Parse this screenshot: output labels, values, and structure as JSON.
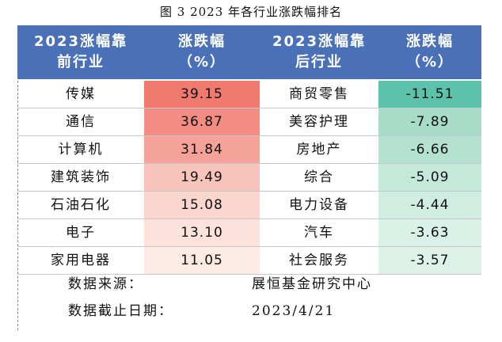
{
  "caption": "图 3   2023 年各行业涨跌幅排名",
  "header": {
    "col1": [
      "2023涨幅靠",
      "前行业"
    ],
    "col2": [
      "涨跌幅",
      "（%）"
    ],
    "col3": [
      "2023涨幅靠",
      "后行业"
    ],
    "col4": [
      "涨跌幅",
      "（%）"
    ]
  },
  "rows": [
    {
      "top": "传媒",
      "top_pct": "39.15",
      "bottom": "商贸零售",
      "bottom_pct": "-11.51"
    },
    {
      "top": "通信",
      "top_pct": "36.87",
      "bottom": "美容护理",
      "bottom_pct": "-7.89"
    },
    {
      "top": "计算机",
      "top_pct": "31.84",
      "bottom": "房地产",
      "bottom_pct": "-6.66"
    },
    {
      "top": "建筑装饰",
      "top_pct": "19.49",
      "bottom": "综合",
      "bottom_pct": "-5.09"
    },
    {
      "top": "石油石化",
      "top_pct": "15.08",
      "bottom": "电力设备",
      "bottom_pct": "-4.44"
    },
    {
      "top": "电子",
      "top_pct": "13.10",
      "bottom": "汽车",
      "bottom_pct": "-3.63"
    },
    {
      "top": "家用电器",
      "top_pct": "11.05",
      "bottom": "社会服务",
      "bottom_pct": "-3.57"
    }
  ],
  "footer": {
    "source_label": "数据来源：",
    "source_value": "展恒基金研究中心",
    "date_label": "数据截止日期：",
    "date_value": "2023/4/21"
  },
  "colors": {
    "header_bg": "#4a71b8",
    "top_pct_bg": [
      "#f07a6e",
      "#f38d83",
      "#f5a298",
      "#f9c4bb",
      "#fbd6cf",
      "#fde2dc",
      "#feeae5"
    ],
    "bottom_pct_bg": [
      "#5cc3aa",
      "#a6dcc8",
      "#b5e2d0",
      "#c4e8d9",
      "#cfede1",
      "#daf1e8",
      "#dcf2e9"
    ]
  }
}
